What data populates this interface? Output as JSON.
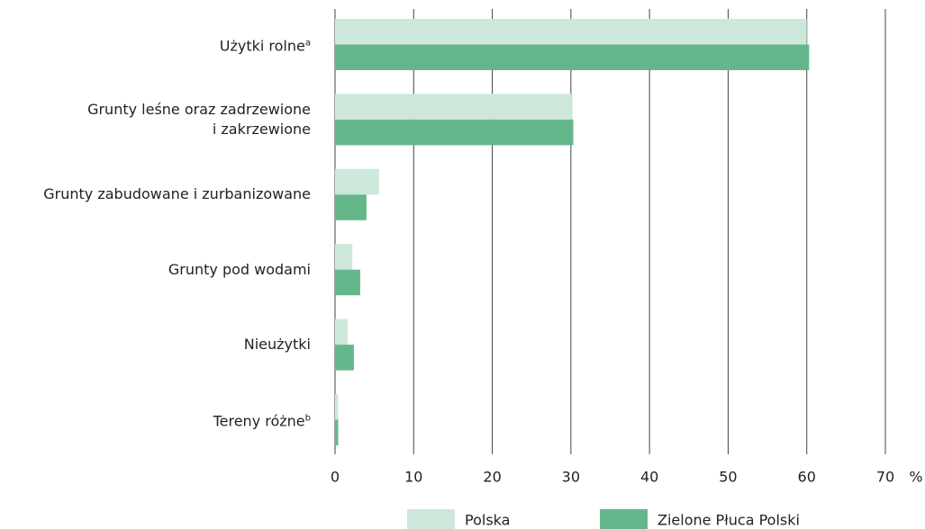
{
  "chart_data": {
    "type": "barh",
    "categories": [
      "Użytki rolne",
      "Grunty leśne oraz zadrzewione\ni zakrzewione",
      "Grunty zabudowane i zurbanizowane",
      "Grunty pod wodami",
      "Nieużytki",
      "Tereny różne"
    ],
    "category_notes": [
      "a",
      null,
      null,
      null,
      null,
      "b"
    ],
    "series": [
      {
        "name": "Polska",
        "color": "#cde8da",
        "values": [
          60,
          30.2,
          5.6,
          2.2,
          1.6,
          0.4
        ]
      },
      {
        "name": "Zielone Płuca Polski",
        "color": "#66b68b",
        "values": [
          60.3,
          30.3,
          4.0,
          3.2,
          2.4,
          0.4
        ]
      }
    ],
    "x_label": "%",
    "xlim": [
      0,
      70
    ],
    "xticks": [
      0,
      10,
      20,
      30,
      40,
      50,
      60,
      70
    ],
    "grid": true
  }
}
